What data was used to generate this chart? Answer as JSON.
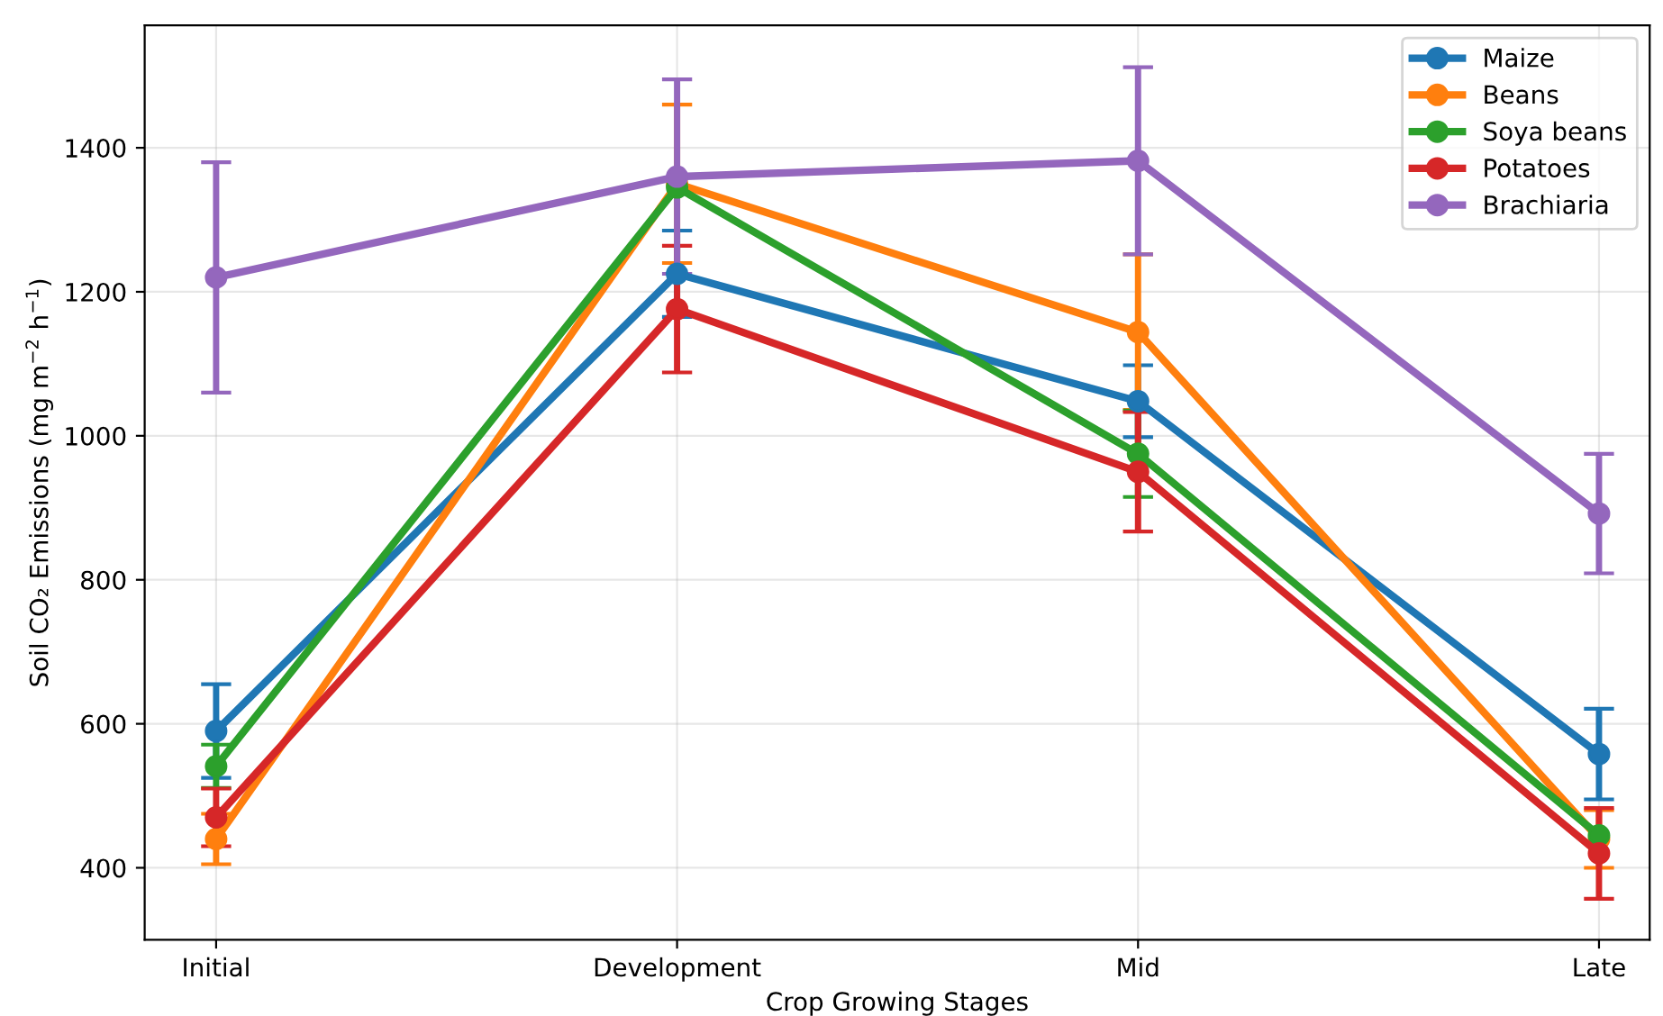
{
  "chart_data": {
    "type": "line",
    "xlabel": "Crop Growing Stages",
    "ylabel": "Soil CO₂ Emissions (mg m$^{−2}$ h$^{−1}$)",
    "categories": [
      "Initial",
      "Development",
      "Mid",
      "Late"
    ],
    "series": [
      {
        "name": "Maize",
        "color": "#1f77b4",
        "values": [
          590,
          1225,
          1048,
          558
        ],
        "errors": [
          65,
          60,
          50,
          63
        ]
      },
      {
        "name": "Beans",
        "color": "#ff7f0e",
        "values": [
          440,
          1350,
          1144,
          440
        ],
        "errors": [
          35,
          110,
          108,
          40
        ]
      },
      {
        "name": "Soya beans",
        "color": "#2ca02c",
        "values": [
          541,
          1345,
          975,
          445
        ],
        "errors": [
          30,
          null,
          60,
          null
        ]
      },
      {
        "name": "Potatoes",
        "color": "#d62728",
        "values": [
          470,
          1176,
          950,
          420
        ],
        "errors": [
          40,
          88,
          83,
          63
        ]
      },
      {
        "name": "Brachiaria",
        "color": "#9467bd",
        "values": [
          1220,
          1360,
          1382,
          892
        ],
        "errors": [
          160,
          135,
          130,
          83
        ]
      }
    ],
    "ylim": [
      300,
      1570
    ],
    "yticks": [
      400,
      600,
      800,
      1000,
      1200,
      1400
    ],
    "grid": true,
    "legend": "top right",
    "marker": "circle",
    "line_style": "solid"
  }
}
